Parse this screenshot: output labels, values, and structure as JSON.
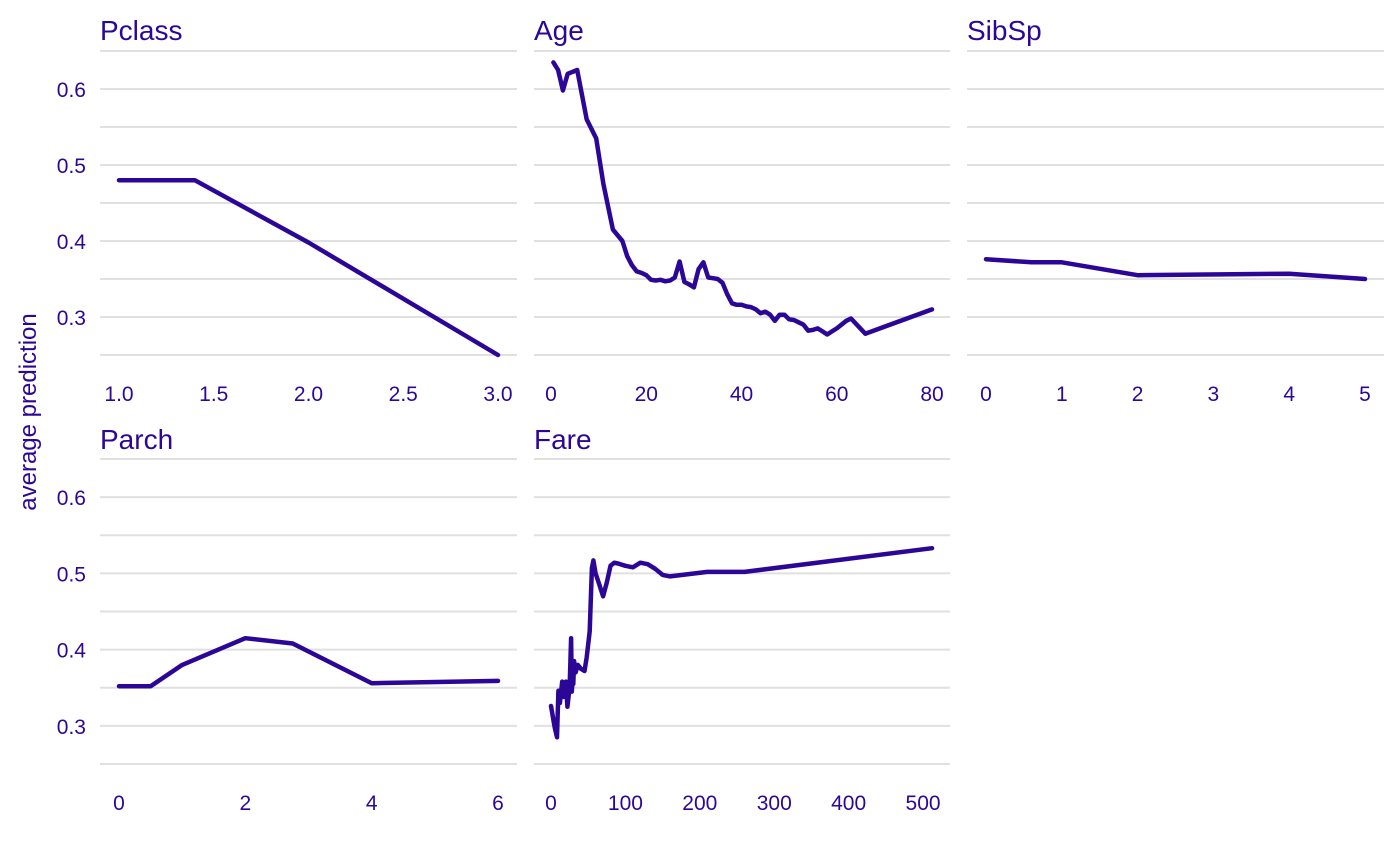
{
  "colors": {
    "accent": "#2c0797",
    "grid": "#e0e0e0",
    "background": "#ffffff"
  },
  "ylabel": "average prediction",
  "chart_data": [
    {
      "type": "line",
      "title": "Pclass",
      "x_ticks": [
        "1.0",
        "1.5",
        "2.0",
        "2.5",
        "3.0"
      ],
      "y_ticks": [
        "0.3",
        "0.4",
        "0.5",
        "0.6"
      ],
      "xlim": [
        1.0,
        3.0
      ],
      "ylim": [
        0.25,
        0.65
      ],
      "grid": "horizontal",
      "x": [
        1.0,
        1.4,
        2.0,
        3.0
      ],
      "y": [
        0.48,
        0.48,
        0.398,
        0.25
      ]
    },
    {
      "type": "line",
      "title": "Age",
      "x_ticks": [
        "0",
        "20",
        "40",
        "60",
        "80"
      ],
      "y_ticks": [
        "0.3",
        "0.4",
        "0.5",
        "0.6"
      ],
      "xlim": [
        0,
        80
      ],
      "ylim": [
        0.25,
        0.65
      ],
      "grid": "horizontal",
      "x": [
        0.5,
        1.5,
        2.5,
        3.5,
        5.5,
        7.5,
        9.5,
        11,
        13,
        15,
        16,
        17,
        18,
        19,
        20,
        21,
        22,
        23,
        24,
        25,
        26,
        27,
        28,
        29,
        30,
        31,
        32,
        33,
        34,
        35,
        36,
        37,
        38,
        39,
        40,
        41,
        42,
        43,
        44,
        45,
        46,
        47,
        48,
        49,
        50,
        51,
        52,
        53,
        54,
        55,
        56,
        57,
        58,
        59,
        60,
        61,
        62,
        63,
        66,
        80
      ],
      "y": [
        0.635,
        0.625,
        0.598,
        0.62,
        0.625,
        0.56,
        0.535,
        0.475,
        0.415,
        0.4,
        0.38,
        0.368,
        0.36,
        0.358,
        0.355,
        0.349,
        0.348,
        0.349,
        0.347,
        0.348,
        0.352,
        0.373,
        0.346,
        0.343,
        0.339,
        0.363,
        0.372,
        0.352,
        0.351,
        0.35,
        0.345,
        0.33,
        0.318,
        0.316,
        0.316,
        0.314,
        0.313,
        0.31,
        0.305,
        0.307,
        0.303,
        0.295,
        0.303,
        0.303,
        0.297,
        0.296,
        0.293,
        0.29,
        0.282,
        0.283,
        0.285,
        0.281,
        0.277,
        0.281,
        0.285,
        0.29,
        0.295,
        0.298,
        0.278,
        0.31
      ]
    },
    {
      "type": "line",
      "title": "SibSp",
      "x_ticks": [
        "0",
        "1",
        "2",
        "3",
        "4",
        "5"
      ],
      "y_ticks": [
        "0.3",
        "0.4",
        "0.5",
        "0.6"
      ],
      "xlim": [
        0,
        5
      ],
      "ylim": [
        0.25,
        0.65
      ],
      "grid": "horizontal",
      "x": [
        0,
        0.6,
        1,
        2,
        4,
        5
      ],
      "y": [
        0.376,
        0.372,
        0.372,
        0.355,
        0.357,
        0.35
      ]
    },
    {
      "type": "line",
      "title": "Parch",
      "x_ticks": [
        "0",
        "2",
        "4",
        "6"
      ],
      "y_ticks": [
        "0.3",
        "0.4",
        "0.5",
        "0.6"
      ],
      "xlim": [
        0,
        6
      ],
      "ylim": [
        0.25,
        0.65
      ],
      "grid": "horizontal",
      "x": [
        0,
        0.5,
        1,
        2,
        2.75,
        4,
        6
      ],
      "y": [
        0.352,
        0.352,
        0.38,
        0.415,
        0.408,
        0.356,
        0.359
      ]
    },
    {
      "type": "line",
      "title": "Fare",
      "x_ticks": [
        "0",
        "100",
        "200",
        "300",
        "400",
        "500"
      ],
      "y_ticks": [
        "0.3",
        "0.4",
        "0.5",
        "0.6"
      ],
      "xlim": [
        0,
        512
      ],
      "ylim": [
        0.25,
        0.65
      ],
      "grid": "horizontal",
      "x": [
        0,
        5,
        8,
        10,
        12,
        15,
        17,
        20,
        22,
        25,
        27,
        28,
        29,
        30,
        31,
        33,
        36,
        40,
        45,
        48,
        52,
        55,
        57,
        60,
        65,
        70,
        75,
        80,
        85,
        90,
        100,
        110,
        120,
        130,
        140,
        150,
        160,
        210,
        260,
        512
      ],
      "y": [
        0.326,
        0.298,
        0.285,
        0.346,
        0.33,
        0.358,
        0.338,
        0.358,
        0.325,
        0.35,
        0.415,
        0.345,
        0.36,
        0.355,
        0.385,
        0.37,
        0.38,
        0.375,
        0.372,
        0.39,
        0.424,
        0.507,
        0.517,
        0.5,
        0.485,
        0.47,
        0.488,
        0.51,
        0.514,
        0.513,
        0.51,
        0.508,
        0.514,
        0.512,
        0.506,
        0.498,
        0.496,
        0.502,
        0.502,
        0.533
      ]
    }
  ]
}
